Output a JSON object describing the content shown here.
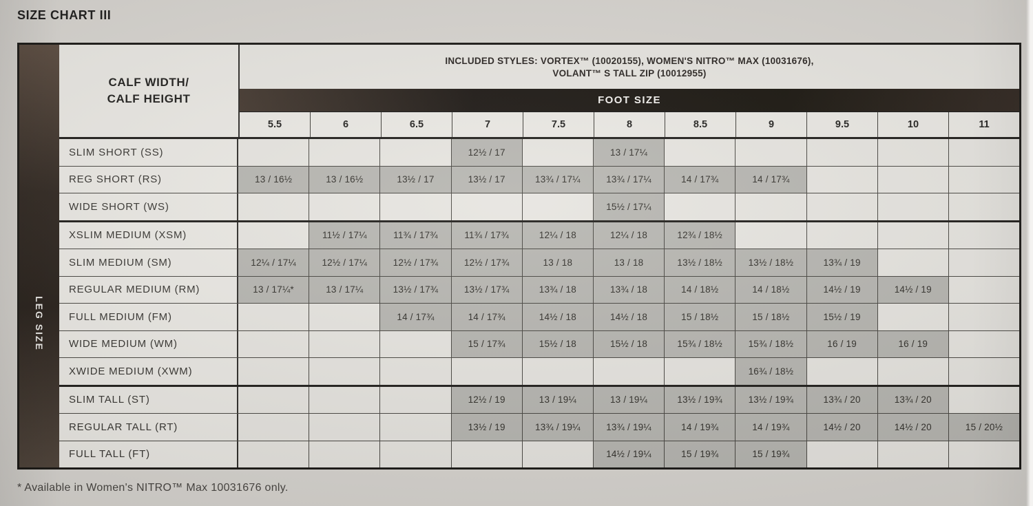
{
  "page": {
    "title": "SIZE CHART III",
    "footnote": "* Available in Women's NITRO™ Max 10031676 only."
  },
  "table": {
    "corner": {
      "line1": "CALF WIDTH/",
      "line2": "CALF HEIGHT"
    },
    "included_styles": {
      "line1": "INCLUDED STYLES: VORTEX™ (10020155), WOMEN'S NITRO™ MAX (10031676),",
      "line2": "VOLANT™ S TALL ZIP (10012955)"
    },
    "foot_size_label": "FOOT SIZE",
    "leg_size_label": "LEG SIZE",
    "foot_sizes": [
      "5.5",
      "6",
      "6.5",
      "7",
      "7.5",
      "8",
      "8.5",
      "9",
      "9.5",
      "10",
      "11"
    ],
    "rows": [
      {
        "label": "SLIM SHORT (SS)",
        "group_start": false,
        "cells": [
          "",
          "",
          "",
          "12½ / 17",
          "",
          "13 / 17¼",
          "",
          "",
          "",
          "",
          ""
        ]
      },
      {
        "label": "REG SHORT (RS)",
        "group_start": false,
        "cells": [
          "13 / 16½",
          "13 / 16½",
          "13½ / 17",
          "13½ / 17",
          "13¾ / 17¼",
          "13¾ / 17¼",
          "14 / 17¾",
          "14 / 17¾",
          "",
          "",
          ""
        ]
      },
      {
        "label": "WIDE SHORT (WS)",
        "group_start": false,
        "cells": [
          "",
          "",
          "",
          "",
          "",
          "15½ / 17¼",
          "",
          "",
          "",
          "",
          ""
        ]
      },
      {
        "label": "XSLIM MEDIUM (XSM)",
        "group_start": true,
        "cells": [
          "",
          "11½ / 17¼",
          "11¾ / 17¾",
          "11¾ / 17¾",
          "12¼ / 18",
          "12¼ / 18",
          "12¾ / 18½",
          "",
          "",
          "",
          ""
        ]
      },
      {
        "label": "SLIM MEDIUM (SM)",
        "group_start": false,
        "cells": [
          "12¼ / 17¼",
          "12½ / 17¼",
          "12½ / 17¾",
          "12½ / 17¾",
          "13 / 18",
          "13 / 18",
          "13½ / 18½",
          "13½ / 18½",
          "13¾ / 19",
          "",
          ""
        ]
      },
      {
        "label": "REGULAR MEDIUM (RM)",
        "group_start": false,
        "cells": [
          "13 / 17¼*",
          "13 / 17¼",
          "13½ / 17¾",
          "13½ / 17¾",
          "13¾ / 18",
          "13¾ / 18",
          "14 / 18½",
          "14 / 18½",
          "14½ / 19",
          "14½ / 19",
          ""
        ]
      },
      {
        "label": "FULL MEDIUM (FM)",
        "group_start": false,
        "cells": [
          "",
          "",
          "14 / 17¾",
          "14 / 17¾",
          "14½ / 18",
          "14½ / 18",
          "15 / 18½",
          "15 / 18½",
          "15½ / 19",
          "",
          ""
        ]
      },
      {
        "label": "WIDE MEDIUM (WM)",
        "group_start": false,
        "cells": [
          "",
          "",
          "",
          "15 / 17¾",
          "15½ / 18",
          "15½ / 18",
          "15¾ / 18½",
          "15¾ / 18½",
          "16 / 19",
          "16 / 19",
          ""
        ]
      },
      {
        "label": "XWIDE MEDIUM (XWM)",
        "group_start": false,
        "cells": [
          "",
          "",
          "",
          "",
          "",
          "",
          "",
          "16¾ / 18½",
          "",
          "",
          ""
        ]
      },
      {
        "label": "SLIM TALL (ST)",
        "group_start": true,
        "cells": [
          "",
          "",
          "",
          "12½ / 19",
          "13 / 19¼",
          "13 / 19¼",
          "13½ / 19¾",
          "13½ / 19¾",
          "13¾ / 20",
          "13¾ / 20",
          ""
        ]
      },
      {
        "label": "REGULAR TALL (RT)",
        "group_start": false,
        "cells": [
          "",
          "",
          "",
          "13½ / 19",
          "13¾ / 19¼",
          "13¾ / 19¼",
          "14 / 19¾",
          "14 / 19¾",
          "14½ / 20",
          "14½ / 20",
          "15 / 20½"
        ]
      },
      {
        "label": "FULL TALL (FT)",
        "group_start": false,
        "cells": [
          "",
          "",
          "",
          "",
          "",
          "14½ / 19¼",
          "15 / 19¾",
          "15 / 19¾",
          "",
          "",
          ""
        ]
      }
    ]
  },
  "colors": {
    "filled_cell": "#b5b4af",
    "empty_cell": "#e6e4df",
    "header_bar": "#18130f",
    "sidebar_brown": "#3a2f27",
    "page_background": "#d8d5d0"
  }
}
